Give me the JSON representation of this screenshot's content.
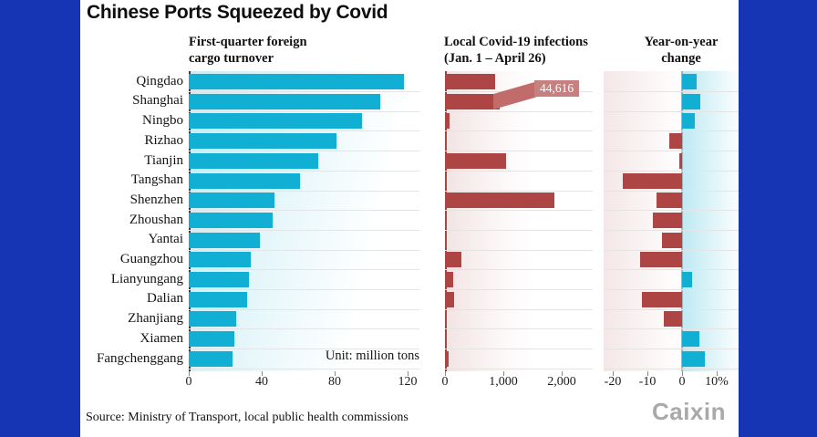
{
  "title": "Chinese Ports Squeezed by Covid",
  "unit_note": "Unit: million tons",
  "source": "Source: Ministry of Transport, local public health commissions",
  "logo": "Caixin",
  "colors": {
    "frame_blue": "#1635b4",
    "bar_teal": "#12afd5",
    "bar_red": "#ae4545",
    "break_ribbon": "#c16b6b",
    "break_label_bg": "#c6807f"
  },
  "panels": [
    {
      "header": "First-quarter foreign\ncargo turnover"
    },
    {
      "header": "Local Covid-19 infections\n(Jan. 1 – April 26)"
    },
    {
      "header": "Year-on-year\nchange"
    }
  ],
  "chart_data": {
    "type": "bar",
    "orientation": "horizontal",
    "categories": [
      "Qingdao",
      "Shanghai",
      "Ningbo",
      "Rizhao",
      "Tianjin",
      "Tangshan",
      "Shenzhen",
      "Zhoushan",
      "Yantai",
      "Guangzhou",
      "Lianyungang",
      "Dalian",
      "Zhanjiang",
      "Xiamen",
      "Fangchenggang"
    ],
    "series": [
      {
        "name": "First-quarter foreign cargo turnover",
        "unit": "million tons",
        "xlim": [
          0,
          126
        ],
        "ticks": [
          0,
          40,
          80,
          120
        ],
        "tick_labels": [
          "0",
          "40",
          "80",
          "120"
        ],
        "values": [
          118,
          105,
          95,
          81,
          71,
          61,
          47,
          46,
          39,
          34,
          33,
          32,
          26,
          25,
          24
        ]
      },
      {
        "name": "Local Covid-19 infections (Jan. 1 – April 26)",
        "xlim": [
          0,
          2500
        ],
        "ticks": [
          0,
          1000,
          2000
        ],
        "tick_labels": [
          "0",
          "1,000",
          "2,000"
        ],
        "values": [
          860,
          44616,
          85,
          12,
          1050,
          25,
          1870,
          6,
          15,
          280,
          140,
          155,
          8,
          20,
          65
        ],
        "annotations": [
          {
            "category": "Shanghai",
            "label": "44,616",
            "note": "bar truncated at axis break"
          }
        ]
      },
      {
        "name": "Year-on-year change",
        "unit": "%",
        "xlim": [
          -22,
          12
        ],
        "ticks": [
          -20,
          -10,
          0,
          10
        ],
        "tick_labels": [
          "-20",
          "-10",
          "0",
          "10%"
        ],
        "values": [
          4.2,
          5.2,
          3.6,
          -3.8,
          -0.8,
          -17,
          -7.3,
          -8.3,
          -5.9,
          -12,
          3,
          -11.7,
          -5.3,
          5,
          6.5
        ]
      }
    ],
    "legend": null,
    "grid": "horizontal-row-lines"
  }
}
